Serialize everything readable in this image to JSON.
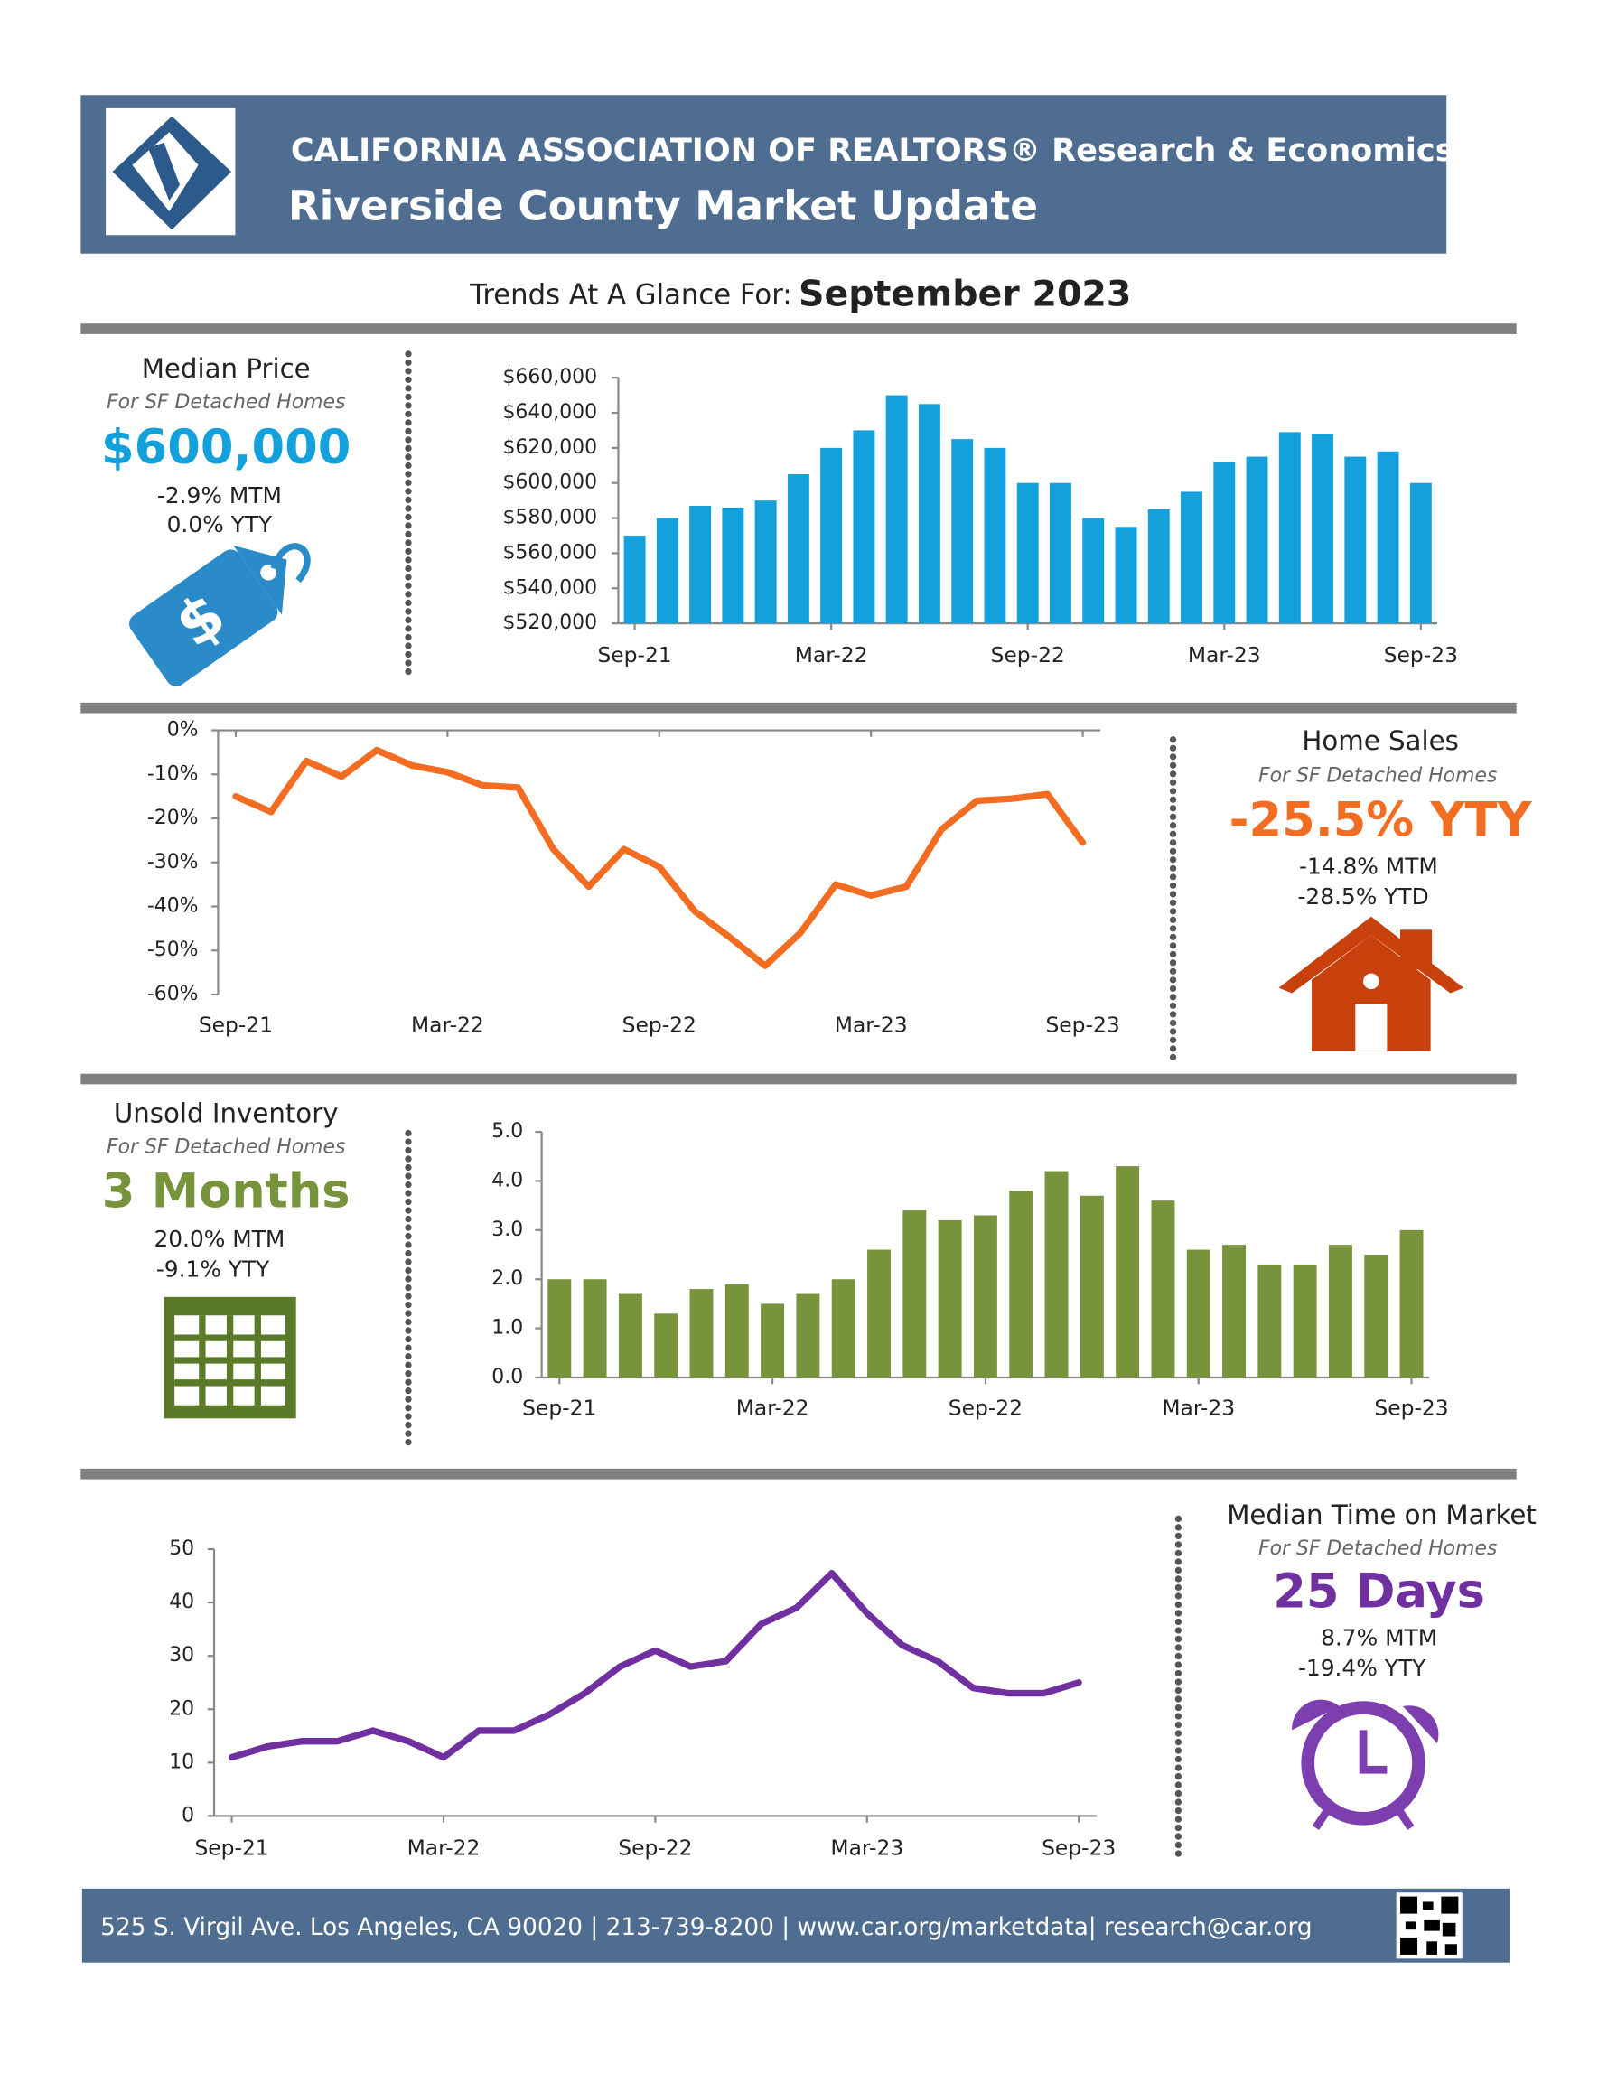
{
  "header": {
    "org": "CALIFORNIA ASSOCIATION OF REALTORS® Research & Economics",
    "title": "Riverside County Market Update"
  },
  "trend": {
    "prefix": "Trends At A Glance For:",
    "period": "September 2023"
  },
  "panels": [
    {
      "title": "Median Price",
      "subtitle": "For SF Detached Homes",
      "headline": "$600,000",
      "stats": [
        "-2.9% MTM",
        "0.0% YTY"
      ]
    },
    {
      "title": "Home Sales",
      "subtitle": "For SF Detached Homes",
      "headline": "-25.5% YTY",
      "stats": [
        "-14.8% MTM",
        "-28.5% YTD"
      ]
    },
    {
      "title": "Unsold Inventory",
      "subtitle": "For SF Detached Homes",
      "headline": "3 Months",
      "stats": [
        "20.0% MTM",
        "-9.1% YTY"
      ]
    },
    {
      "title": "Median Time on Market",
      "subtitle": "For SF Detached Homes",
      "headline": "25 Days",
      "stats": [
        "8.7% MTM",
        "-19.4% YTY"
      ]
    }
  ],
  "footer": {
    "contact": "525 S. Virgil Ave. Los Angeles, CA 90020 | 213-739-8200 | www.car.org/marketdata| research@car.org"
  },
  "chart_data": [
    {
      "type": "bar",
      "color": "#14a0da",
      "categories": [
        "Sep-21",
        null,
        null,
        null,
        null,
        null,
        "Mar-22",
        null,
        null,
        null,
        null,
        null,
        "Sep-22",
        null,
        null,
        null,
        null,
        null,
        "Mar-23",
        null,
        null,
        null,
        null,
        null,
        "Sep-23"
      ],
      "values": [
        570000,
        580000,
        587000,
        586000,
        590000,
        605000,
        620000,
        630000,
        650000,
        645000,
        625000,
        620000,
        600000,
        600000,
        580000,
        575000,
        585000,
        595000,
        612000,
        615000,
        629000,
        628000,
        615000,
        618000,
        600000
      ],
      "ylim": [
        520000,
        660000
      ],
      "yticks": [
        {
          "value": 520000,
          "label": "$520,000"
        },
        {
          "value": 540000,
          "label": "$540,000"
        },
        {
          "value": 560000,
          "label": "$560,000"
        },
        {
          "value": 580000,
          "label": "$580,000"
        },
        {
          "value": 600000,
          "label": "$600,000"
        },
        {
          "value": 620000,
          "label": "$620,000"
        },
        {
          "value": 640000,
          "label": "$640,000"
        },
        {
          "value": 660000,
          "label": "$660,000"
        }
      ]
    },
    {
      "type": "line",
      "color": "#f26c21",
      "categories": [
        "Sep-21",
        null,
        null,
        null,
        null,
        null,
        "Mar-22",
        null,
        null,
        null,
        null,
        null,
        "Sep-22",
        null,
        null,
        null,
        null,
        null,
        "Mar-23",
        null,
        null,
        null,
        null,
        null,
        "Sep-23"
      ],
      "values": [
        -15,
        -18.5,
        -7,
        -10.5,
        -4.5,
        -8,
        -9.5,
        -12.5,
        -13,
        -27,
        -35.5,
        -27,
        -31,
        -41,
        -47,
        -53.5,
        -46,
        -35,
        -37.5,
        -35.5,
        -22.5,
        -16,
        -15.5,
        -14.5,
        -25.5
      ],
      "ylim": [
        -60,
        0
      ],
      "yticks": [
        {
          "value": -60,
          "label": "-60%"
        },
        {
          "value": -50,
          "label": "-50%"
        },
        {
          "value": -40,
          "label": "-40%"
        },
        {
          "value": -30,
          "label": "-30%"
        },
        {
          "value": -20,
          "label": "-20%"
        },
        {
          "value": -10,
          "label": "-10%"
        },
        {
          "value": 0,
          "label": "0%"
        }
      ]
    },
    {
      "type": "bar",
      "color": "#77933c",
      "categories": [
        "Sep-21",
        null,
        null,
        null,
        null,
        null,
        "Mar-22",
        null,
        null,
        null,
        null,
        null,
        "Sep-22",
        null,
        null,
        null,
        null,
        null,
        "Mar-23",
        null,
        null,
        null,
        null,
        null,
        "Sep-23"
      ],
      "values": [
        2.0,
        2.0,
        1.7,
        1.3,
        1.8,
        1.9,
        1.5,
        1.7,
        2.0,
        2.6,
        3.4,
        3.2,
        3.3,
        3.8,
        4.2,
        3.7,
        4.3,
        3.6,
        2.6,
        2.7,
        2.3,
        2.3,
        2.7,
        2.5,
        3.0
      ],
      "ylim": [
        0,
        5
      ],
      "yticks": [
        {
          "value": 0,
          "label": "0.0"
        },
        {
          "value": 1,
          "label": "1.0"
        },
        {
          "value": 2,
          "label": "2.0"
        },
        {
          "value": 3,
          "label": "3.0"
        },
        {
          "value": 4,
          "label": "4.0"
        },
        {
          "value": 5,
          "label": "5.0"
        }
      ]
    },
    {
      "type": "line",
      "color": "#7030a0",
      "categories": [
        "Sep-21",
        null,
        null,
        null,
        null,
        null,
        "Mar-22",
        null,
        null,
        null,
        null,
        null,
        "Sep-22",
        null,
        null,
        null,
        null,
        null,
        "Mar-23",
        null,
        null,
        null,
        null,
        null,
        "Sep-23"
      ],
      "values": [
        11,
        13,
        14,
        14,
        16,
        14,
        11,
        16,
        16,
        19,
        23,
        28,
        31,
        28,
        29,
        36,
        39,
        45.5,
        38,
        32,
        29,
        24,
        23,
        23,
        25
      ],
      "ylim": [
        0,
        50
      ],
      "yticks": [
        0,
        10,
        20,
        30,
        40,
        50
      ]
    }
  ]
}
